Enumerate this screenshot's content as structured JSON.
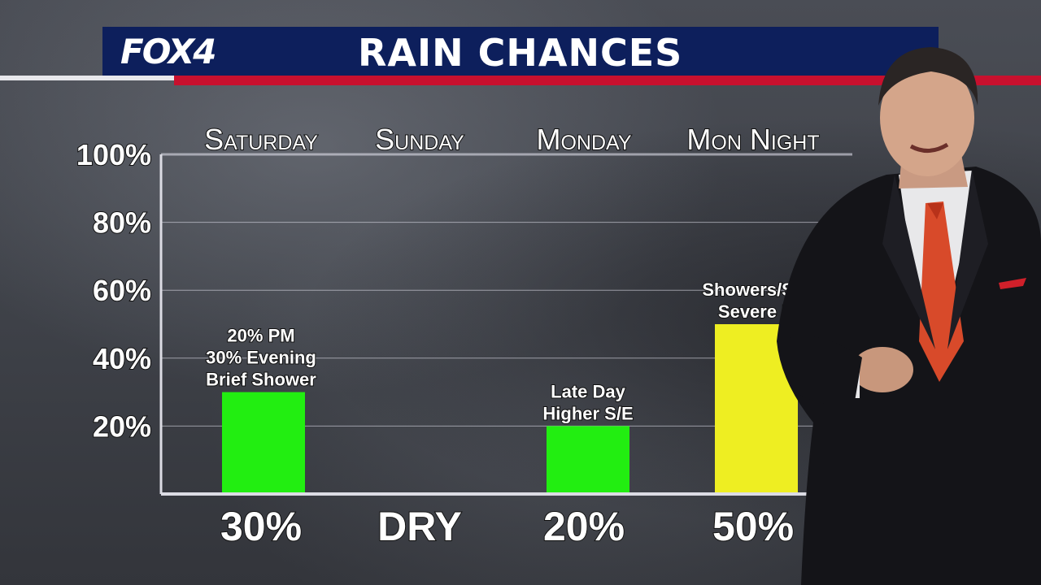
{
  "brand": {
    "logo": "FOX4",
    "title": "RAIN CHANCES"
  },
  "colors": {
    "header_bg": "#0d1f5c",
    "accent_red": "#c8102e",
    "bar_green": "#22ee11",
    "bar_yellow": "#eeee22"
  },
  "chart_data": {
    "type": "bar",
    "categories": [
      "Saturday",
      "Sunday",
      "Monday",
      "Mon Night"
    ],
    "values": [
      30,
      0,
      20,
      50
    ],
    "value_labels": [
      "30%",
      "DRY",
      "20%",
      "50%"
    ],
    "bar_colors": [
      "#22ee11",
      null,
      "#22ee11",
      "#eeee22"
    ],
    "annotations": [
      [
        "20% PM",
        "30% Evening",
        "Brief Shower"
      ],
      [],
      [
        "Late Day",
        "Higher S/E"
      ],
      [
        "Showers/Sto",
        "Severe R"
      ]
    ],
    "yticks": [
      "100%",
      "80%",
      "60%",
      "40%",
      "20%"
    ],
    "ytick_values": [
      100,
      80,
      60,
      40,
      20
    ],
    "ylim": [
      0,
      100
    ],
    "grid": true
  },
  "presenter": {
    "icon": "meteorologist-figure"
  }
}
